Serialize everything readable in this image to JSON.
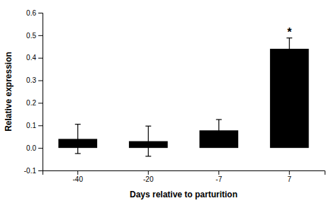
{
  "chart_data": {
    "type": "bar",
    "categories": [
      "-40",
      "-20",
      "-7",
      "7"
    ],
    "values": [
      0.04,
      0.03,
      0.078,
      0.44
    ],
    "errors": [
      0.065,
      0.067,
      0.048,
      0.048
    ],
    "color": "#000000",
    "xlabel": "Days relative to parturition",
    "ylabel": "Relative expression",
    "ylim": [
      -0.1,
      0.6
    ],
    "yticks": [
      -0.1,
      {
        "value": 0,
        "label": "0.0"
      },
      0.1,
      0.2,
      0.3,
      0.4,
      0.5,
      0.6
    ],
    "annotations": [
      {
        "text": "*",
        "category": "7"
      }
    ]
  }
}
